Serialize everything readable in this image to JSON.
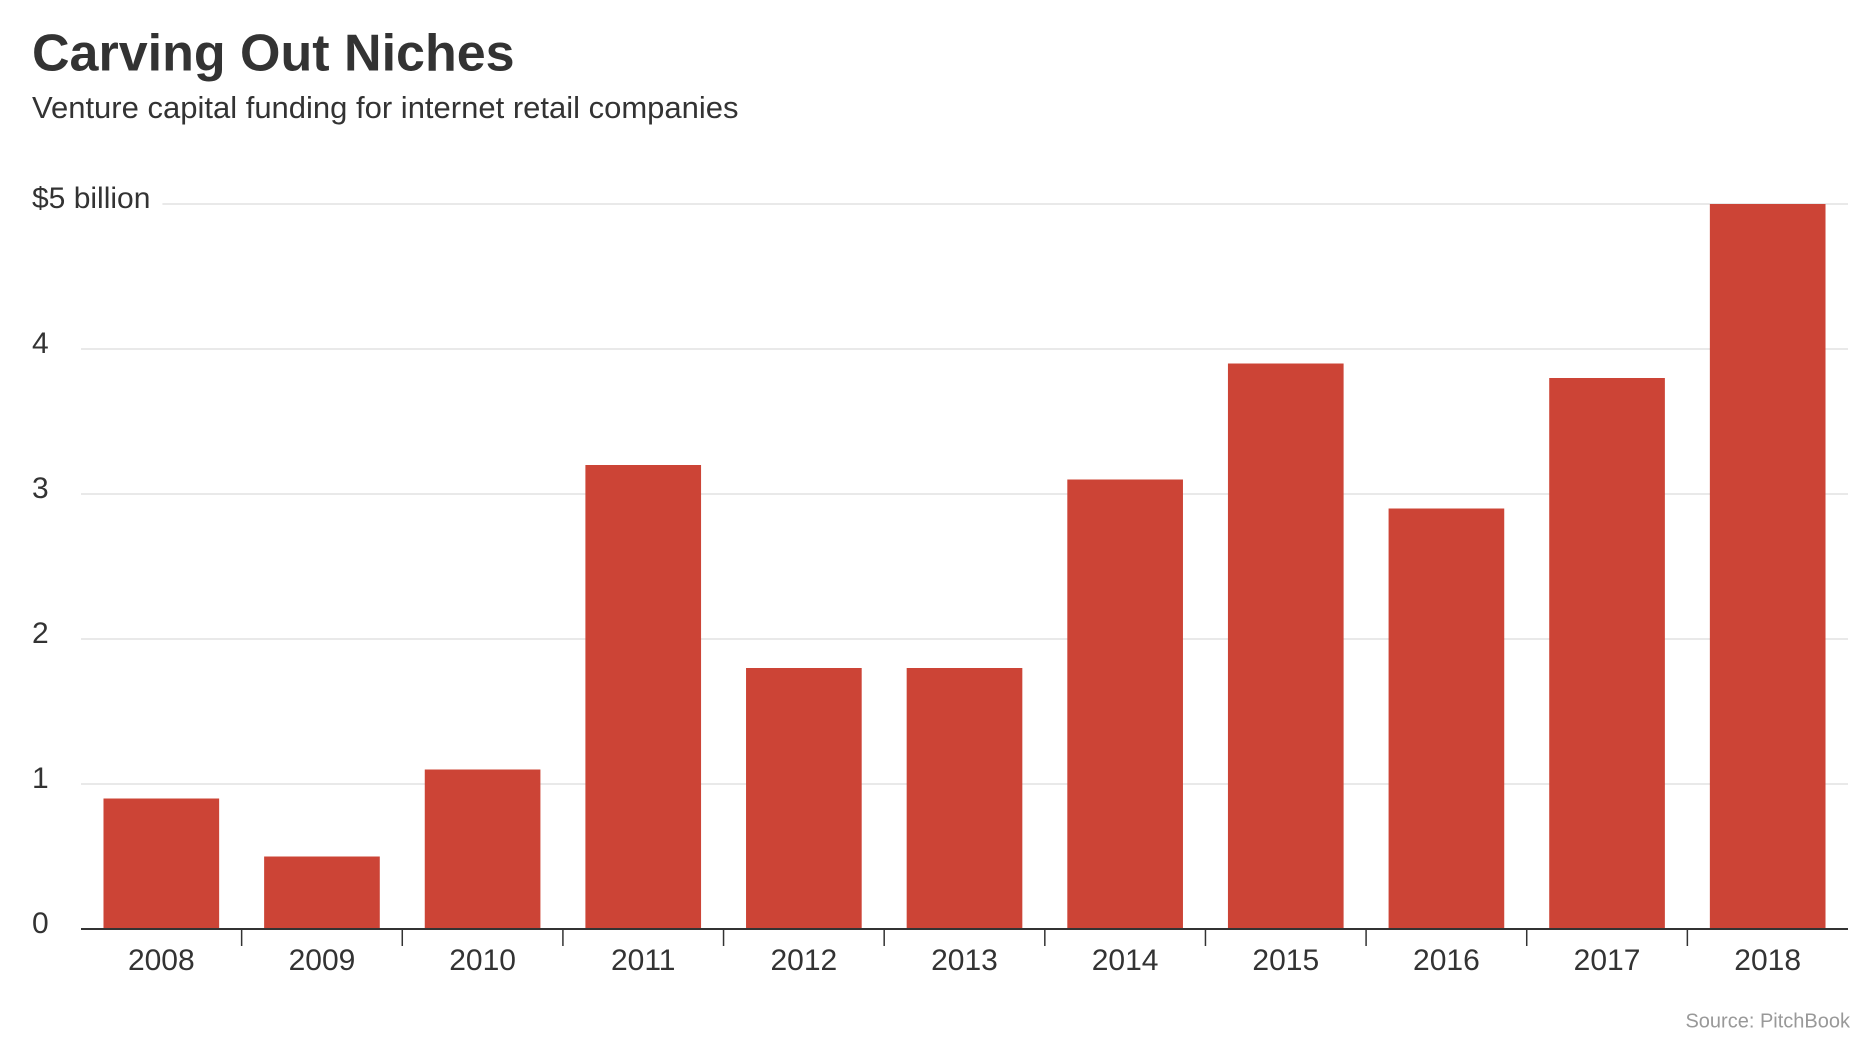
{
  "chart_data": {
    "type": "bar",
    "title": "Carving Out Niches",
    "subtitle": "Venture capital funding for internet retail companies",
    "categories": [
      "2008",
      "2009",
      "2010",
      "2011",
      "2012",
      "2013",
      "2014",
      "2015",
      "2016",
      "2017",
      "2018"
    ],
    "values": [
      0.9,
      0.5,
      1.1,
      3.2,
      1.8,
      1.8,
      3.1,
      3.9,
      2.9,
      3.8,
      5.0
    ],
    "color": "#cc4436",
    "ylim": [
      0,
      5
    ],
    "yticks": [
      0,
      1,
      2,
      3,
      4,
      {
        "value": 5,
        "label": "$5 billion"
      }
    ],
    "grid": true,
    "source": "Source: PitchBook"
  }
}
